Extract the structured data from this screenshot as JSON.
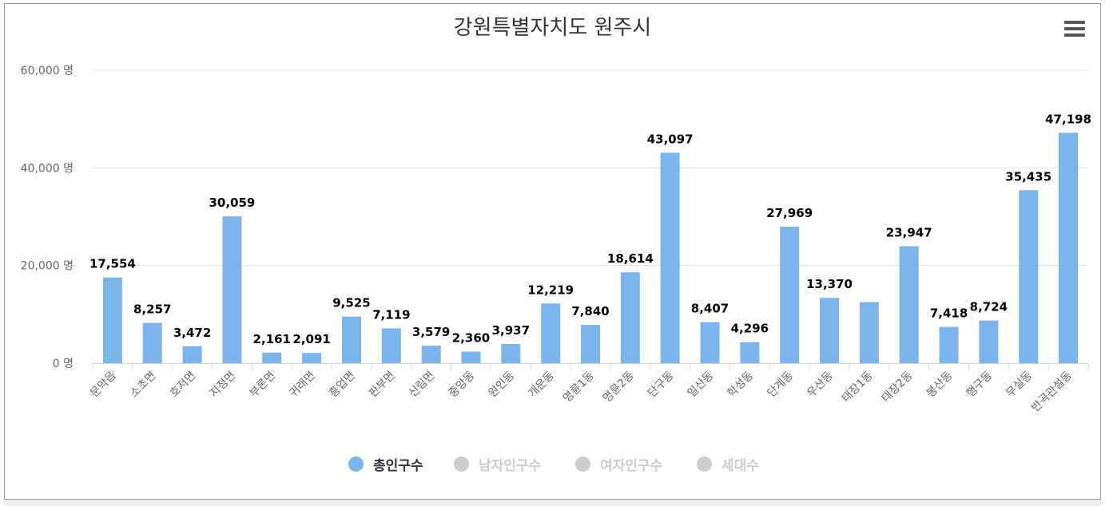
{
  "chart_data": {
    "type": "bar",
    "title": "강원특별자치도 원주시",
    "ylim": [
      0,
      60000
    ],
    "y_ticks": [
      0,
      20000,
      40000,
      60000
    ],
    "y_tick_labels": [
      "0 명",
      "20,000 명",
      "40,000 명",
      "60,000 명"
    ],
    "categories": [
      "문막읍",
      "소초면",
      "호저면",
      "지정면",
      "부론면",
      "귀래면",
      "흥업면",
      "판부면",
      "신림면",
      "중앙동",
      "원인동",
      "개운동",
      "명륜1동",
      "명륜2동",
      "단구동",
      "일산동",
      "학성동",
      "단계동",
      "우산동",
      "태장1동",
      "태장2동",
      "봉산동",
      "행구동",
      "무실동",
      "반곡관설동"
    ],
    "series": [
      {
        "name": "총인구수",
        "color": "#7cb5ec",
        "visible": true,
        "values": [
          17554,
          8257,
          3472,
          30059,
          2161,
          2091,
          9525,
          7119,
          3579,
          2360,
          3937,
          12219,
          7840,
          18614,
          43097,
          8407,
          4296,
          27969,
          13370,
          12500,
          23947,
          7418,
          8724,
          35435,
          47198
        ],
        "data_labels": [
          "17,554",
          "8,257",
          "3,472",
          "30,059",
          "2,161",
          "2,091",
          "9,525",
          "7,119",
          "3,579",
          "2,360",
          "3,937",
          "12,219",
          "7,840",
          "18,614",
          "43,097",
          "8,407",
          "4,296",
          "27,969",
          "13,370",
          "",
          "23,947",
          "7,418",
          "8,724",
          "35,435",
          "47,198"
        ]
      },
      {
        "name": "남자인구수",
        "color": "#cccccc",
        "visible": false
      },
      {
        "name": "여자인구수",
        "color": "#cccccc",
        "visible": false
      },
      {
        "name": "세대수",
        "color": "#cccccc",
        "visible": false
      }
    ],
    "grid": true,
    "legend_position": "bottom-center",
    "colors": {
      "bar": "#7cb5ec",
      "grid": "#e6e6e6",
      "axis": "#ccd6eb",
      "legend_inactive": "#cccccc",
      "label": "#000000"
    }
  },
  "menu": {
    "icon": "hamburger-menu-icon"
  }
}
